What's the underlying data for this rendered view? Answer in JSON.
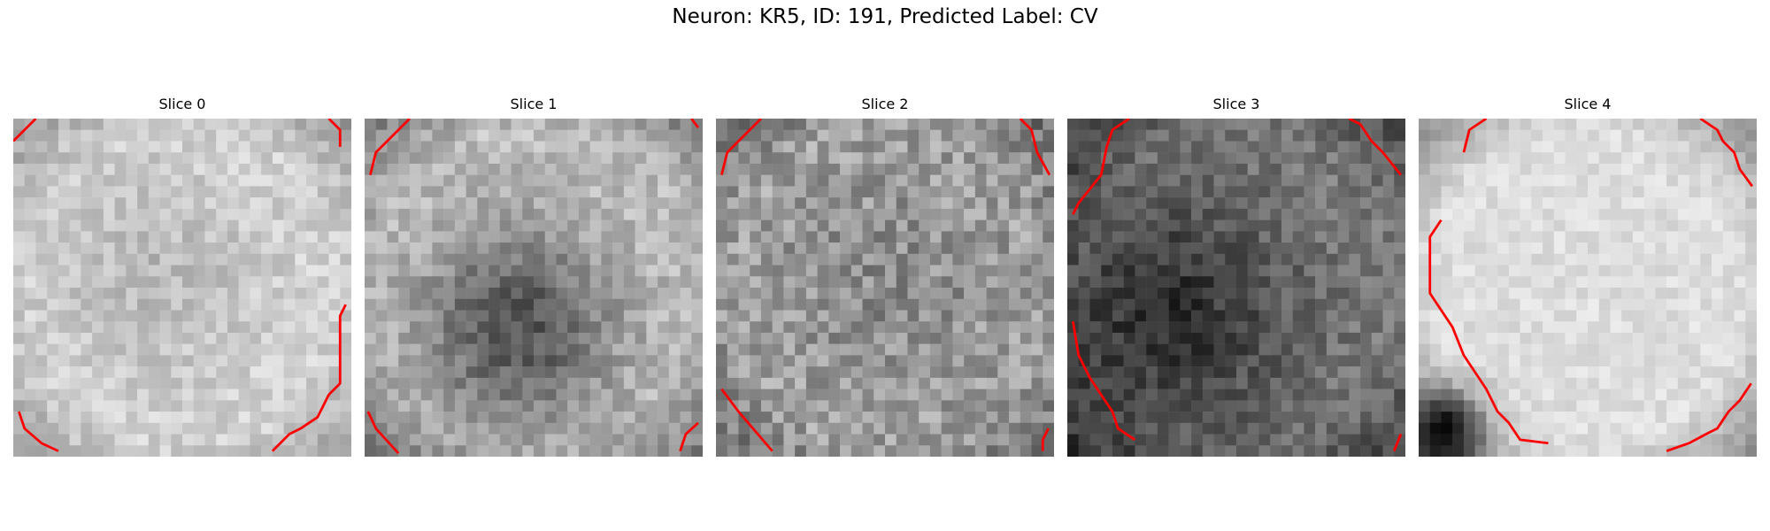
{
  "figure": {
    "title": "Neuron: KR5, ID: 191, Predicted Label: CV"
  },
  "slices": [
    {
      "title": "Slice 0",
      "contour_color": "#ff0000"
    },
    {
      "title": "Slice 1",
      "contour_color": "#ff0000"
    },
    {
      "title": "Slice 2",
      "contour_color": "#ff0000"
    },
    {
      "title": "Slice 3",
      "contour_color": "#ff0000"
    },
    {
      "title": "Slice 4",
      "contour_color": "#ff0000"
    }
  ]
}
